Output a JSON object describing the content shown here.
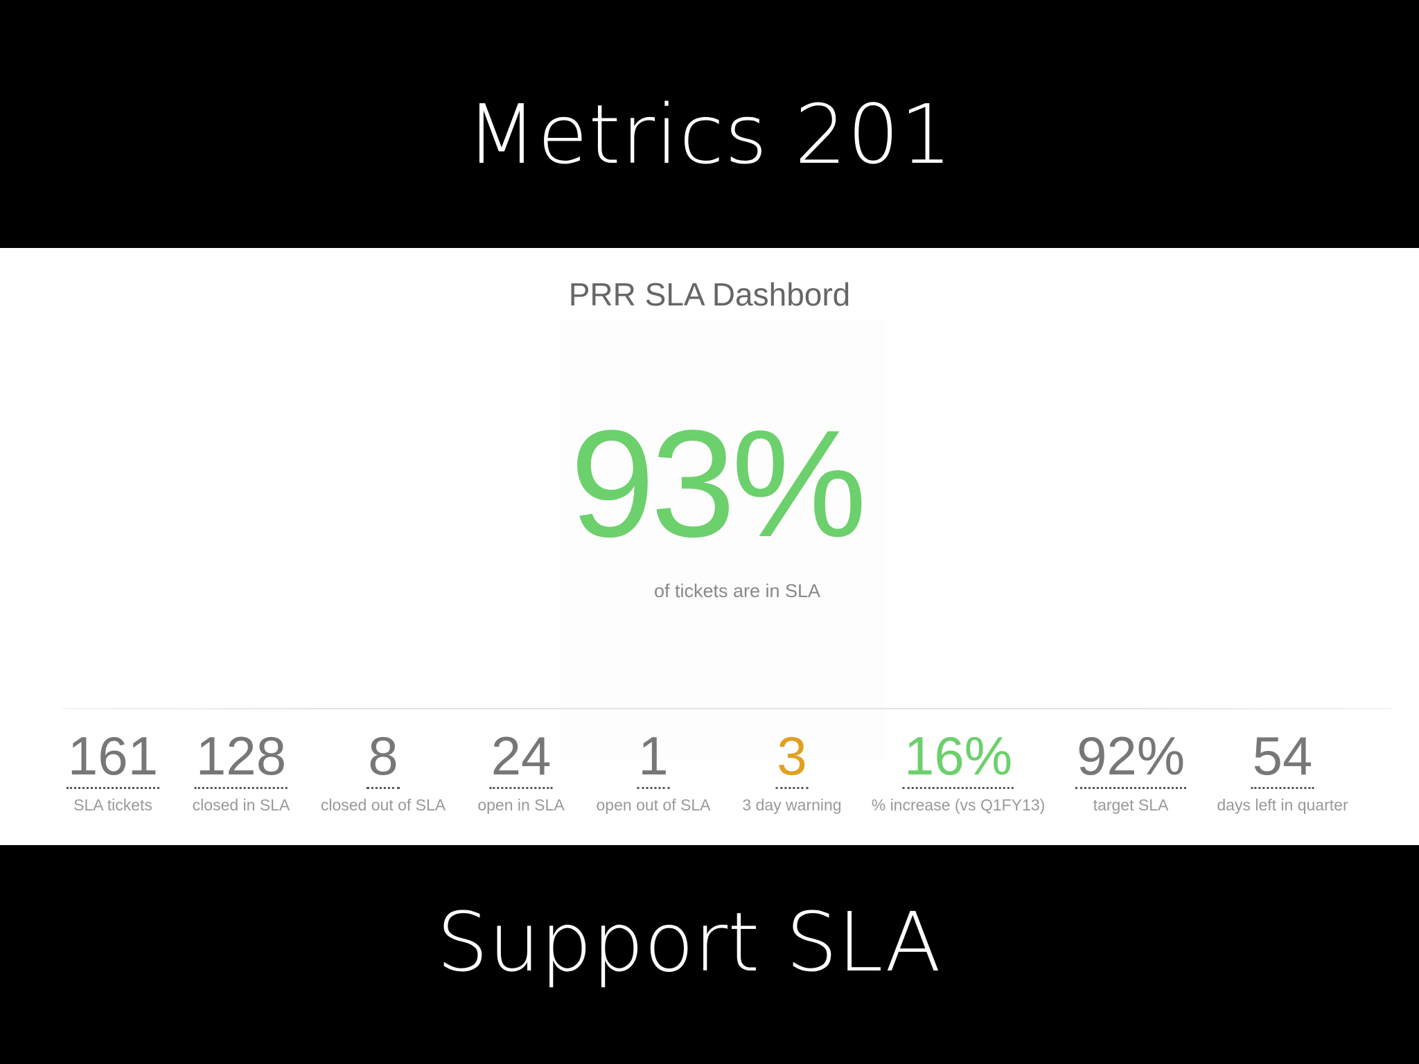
{
  "slide": {
    "title": "Metrics 201",
    "subtitle": "Support SLA"
  },
  "dashboard": {
    "title": "PRR SLA Dashbord",
    "headline": {
      "value": "93%",
      "caption": "of tickets are in SLA",
      "color": "#6cd06c"
    },
    "stats": [
      {
        "value": "161",
        "label": "SLA tickets",
        "color": "#777777"
      },
      {
        "value": "128",
        "label": "closed in SLA",
        "color": "#777777"
      },
      {
        "value": "8",
        "label": "closed out of SLA",
        "color": "#777777"
      },
      {
        "value": "24",
        "label": "open in SLA",
        "color": "#777777"
      },
      {
        "value": "1",
        "label": "open out of SLA",
        "color": "#777777"
      },
      {
        "value": "3",
        "label": "3 day warning",
        "color": "#e0a020"
      },
      {
        "value": "16%",
        "label": "% increase (vs Q1FY13)",
        "color": "#6cd06c"
      },
      {
        "value": "92%",
        "label": "target SLA",
        "color": "#777777"
      },
      {
        "value": "54",
        "label": "days left in quarter",
        "color": "#777777"
      }
    ]
  }
}
